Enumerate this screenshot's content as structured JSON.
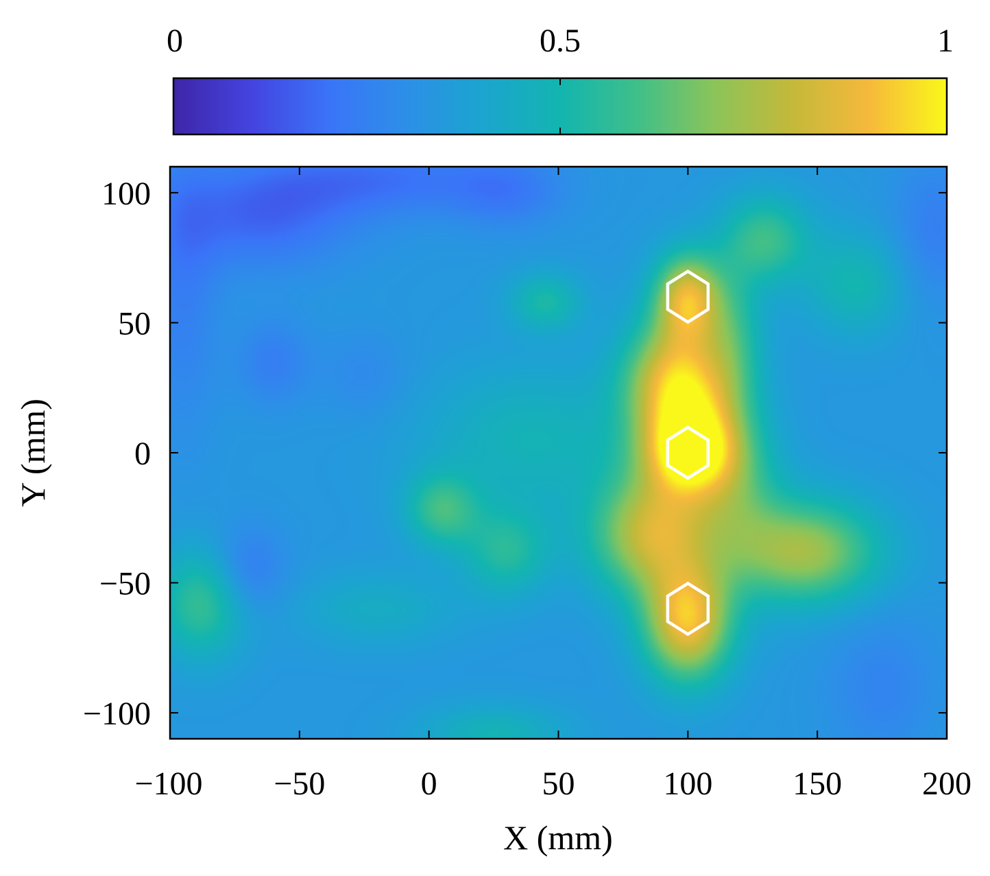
{
  "chart_data": {
    "type": "heatmap",
    "title": "",
    "xlabel": "X (mm)",
    "ylabel": "Y (mm)",
    "xlim": [
      -100,
      200
    ],
    "ylim": [
      -110,
      110
    ],
    "xticks": [
      -100,
      -50,
      0,
      50,
      100,
      150,
      200
    ],
    "yticks": [
      -100,
      -50,
      0,
      50,
      100
    ],
    "xtick_labels": [
      "−100",
      "−50",
      "0",
      "50",
      "100",
      "150",
      "200"
    ],
    "ytick_labels": [
      "−100",
      "−50",
      "0",
      "50",
      "100"
    ],
    "colorbar": {
      "location": "top",
      "range": [
        0,
        1
      ],
      "ticks": [
        0,
        0.5,
        1
      ],
      "tick_labels": [
        "0",
        "0.5",
        "1"
      ],
      "colormap": "parula"
    },
    "colormap_stops": [
      "#3e26a8",
      "#4444e0",
      "#3a74f8",
      "#2d8fe8",
      "#1ba5cf",
      "#13b5b0",
      "#40bf8a",
      "#8cc45a",
      "#c4b93a",
      "#f6b93c",
      "#faf81a"
    ],
    "grid": false,
    "field_base_level": 0.34,
    "field_blobs": [
      {
        "x": 100,
        "y": 15,
        "sx": 14,
        "sy": 24,
        "a": 0.62
      },
      {
        "x": 102,
        "y": 0,
        "sx": 12,
        "sy": 10,
        "a": 0.28
      },
      {
        "x": 88,
        "y": 30,
        "sx": 12,
        "sy": 14,
        "a": 0.15
      },
      {
        "x": 100,
        "y": 60,
        "sx": 9,
        "sy": 12,
        "a": 0.45
      },
      {
        "x": 100,
        "y": -65,
        "sx": 12,
        "sy": 16,
        "a": 0.55
      },
      {
        "x": 85,
        "y": -32,
        "sx": 16,
        "sy": 16,
        "a": 0.42
      },
      {
        "x": 145,
        "y": -38,
        "sx": 20,
        "sy": 14,
        "a": 0.4
      },
      {
        "x": 120,
        "y": -15,
        "sx": 12,
        "sy": 20,
        "a": 0.18
      },
      {
        "x": 118,
        "y": 45,
        "sx": 8,
        "sy": 20,
        "a": 0.15
      },
      {
        "x": 5,
        "y": -22,
        "sx": 10,
        "sy": 10,
        "a": 0.24
      },
      {
        "x": 30,
        "y": -38,
        "sx": 12,
        "sy": 12,
        "a": 0.2
      },
      {
        "x": 40,
        "y": 5,
        "sx": 30,
        "sy": 20,
        "a": 0.14
      },
      {
        "x": 45,
        "y": 58,
        "sx": 10,
        "sy": 8,
        "a": 0.18
      },
      {
        "x": 130,
        "y": 82,
        "sx": 12,
        "sy": 12,
        "a": 0.25
      },
      {
        "x": 165,
        "y": 65,
        "sx": 14,
        "sy": 14,
        "a": 0.16
      },
      {
        "x": -88,
        "y": -58,
        "sx": 12,
        "sy": 15,
        "a": 0.24
      },
      {
        "x": 25,
        "y": -108,
        "sx": 20,
        "sy": 8,
        "a": 0.14
      },
      {
        "x": -20,
        "y": -60,
        "sx": 22,
        "sy": 10,
        "a": 0.1
      },
      {
        "x": -65,
        "y": 90,
        "sx": 25,
        "sy": 14,
        "a": -0.16
      },
      {
        "x": -20,
        "y": 105,
        "sx": 35,
        "sy": 10,
        "a": -0.14
      },
      {
        "x": 30,
        "y": 100,
        "sx": 15,
        "sy": 10,
        "a": -0.1
      },
      {
        "x": -60,
        "y": 35,
        "sx": 10,
        "sy": 12,
        "a": -0.1
      },
      {
        "x": -70,
        "y": -45,
        "sx": 10,
        "sy": 12,
        "a": -0.12
      },
      {
        "x": -95,
        "y": 65,
        "sx": 10,
        "sy": 40,
        "a": -0.1
      },
      {
        "x": 195,
        "y": 85,
        "sx": 12,
        "sy": 20,
        "a": -0.1
      },
      {
        "x": 175,
        "y": -90,
        "sx": 15,
        "sy": 20,
        "a": -0.08
      },
      {
        "x": -25,
        "y": 30,
        "sx": 12,
        "sy": 12,
        "a": -0.06
      }
    ],
    "markers": [
      {
        "shape": "hexagon",
        "x": 100,
        "y": 60,
        "radius": 9,
        "color": "#ffffff"
      },
      {
        "shape": "hexagon",
        "x": 100,
        "y": 0,
        "radius": 9,
        "color": "#ffffff"
      },
      {
        "shape": "hexagon",
        "x": 100,
        "y": -60,
        "radius": 9,
        "color": "#ffffff"
      }
    ]
  }
}
